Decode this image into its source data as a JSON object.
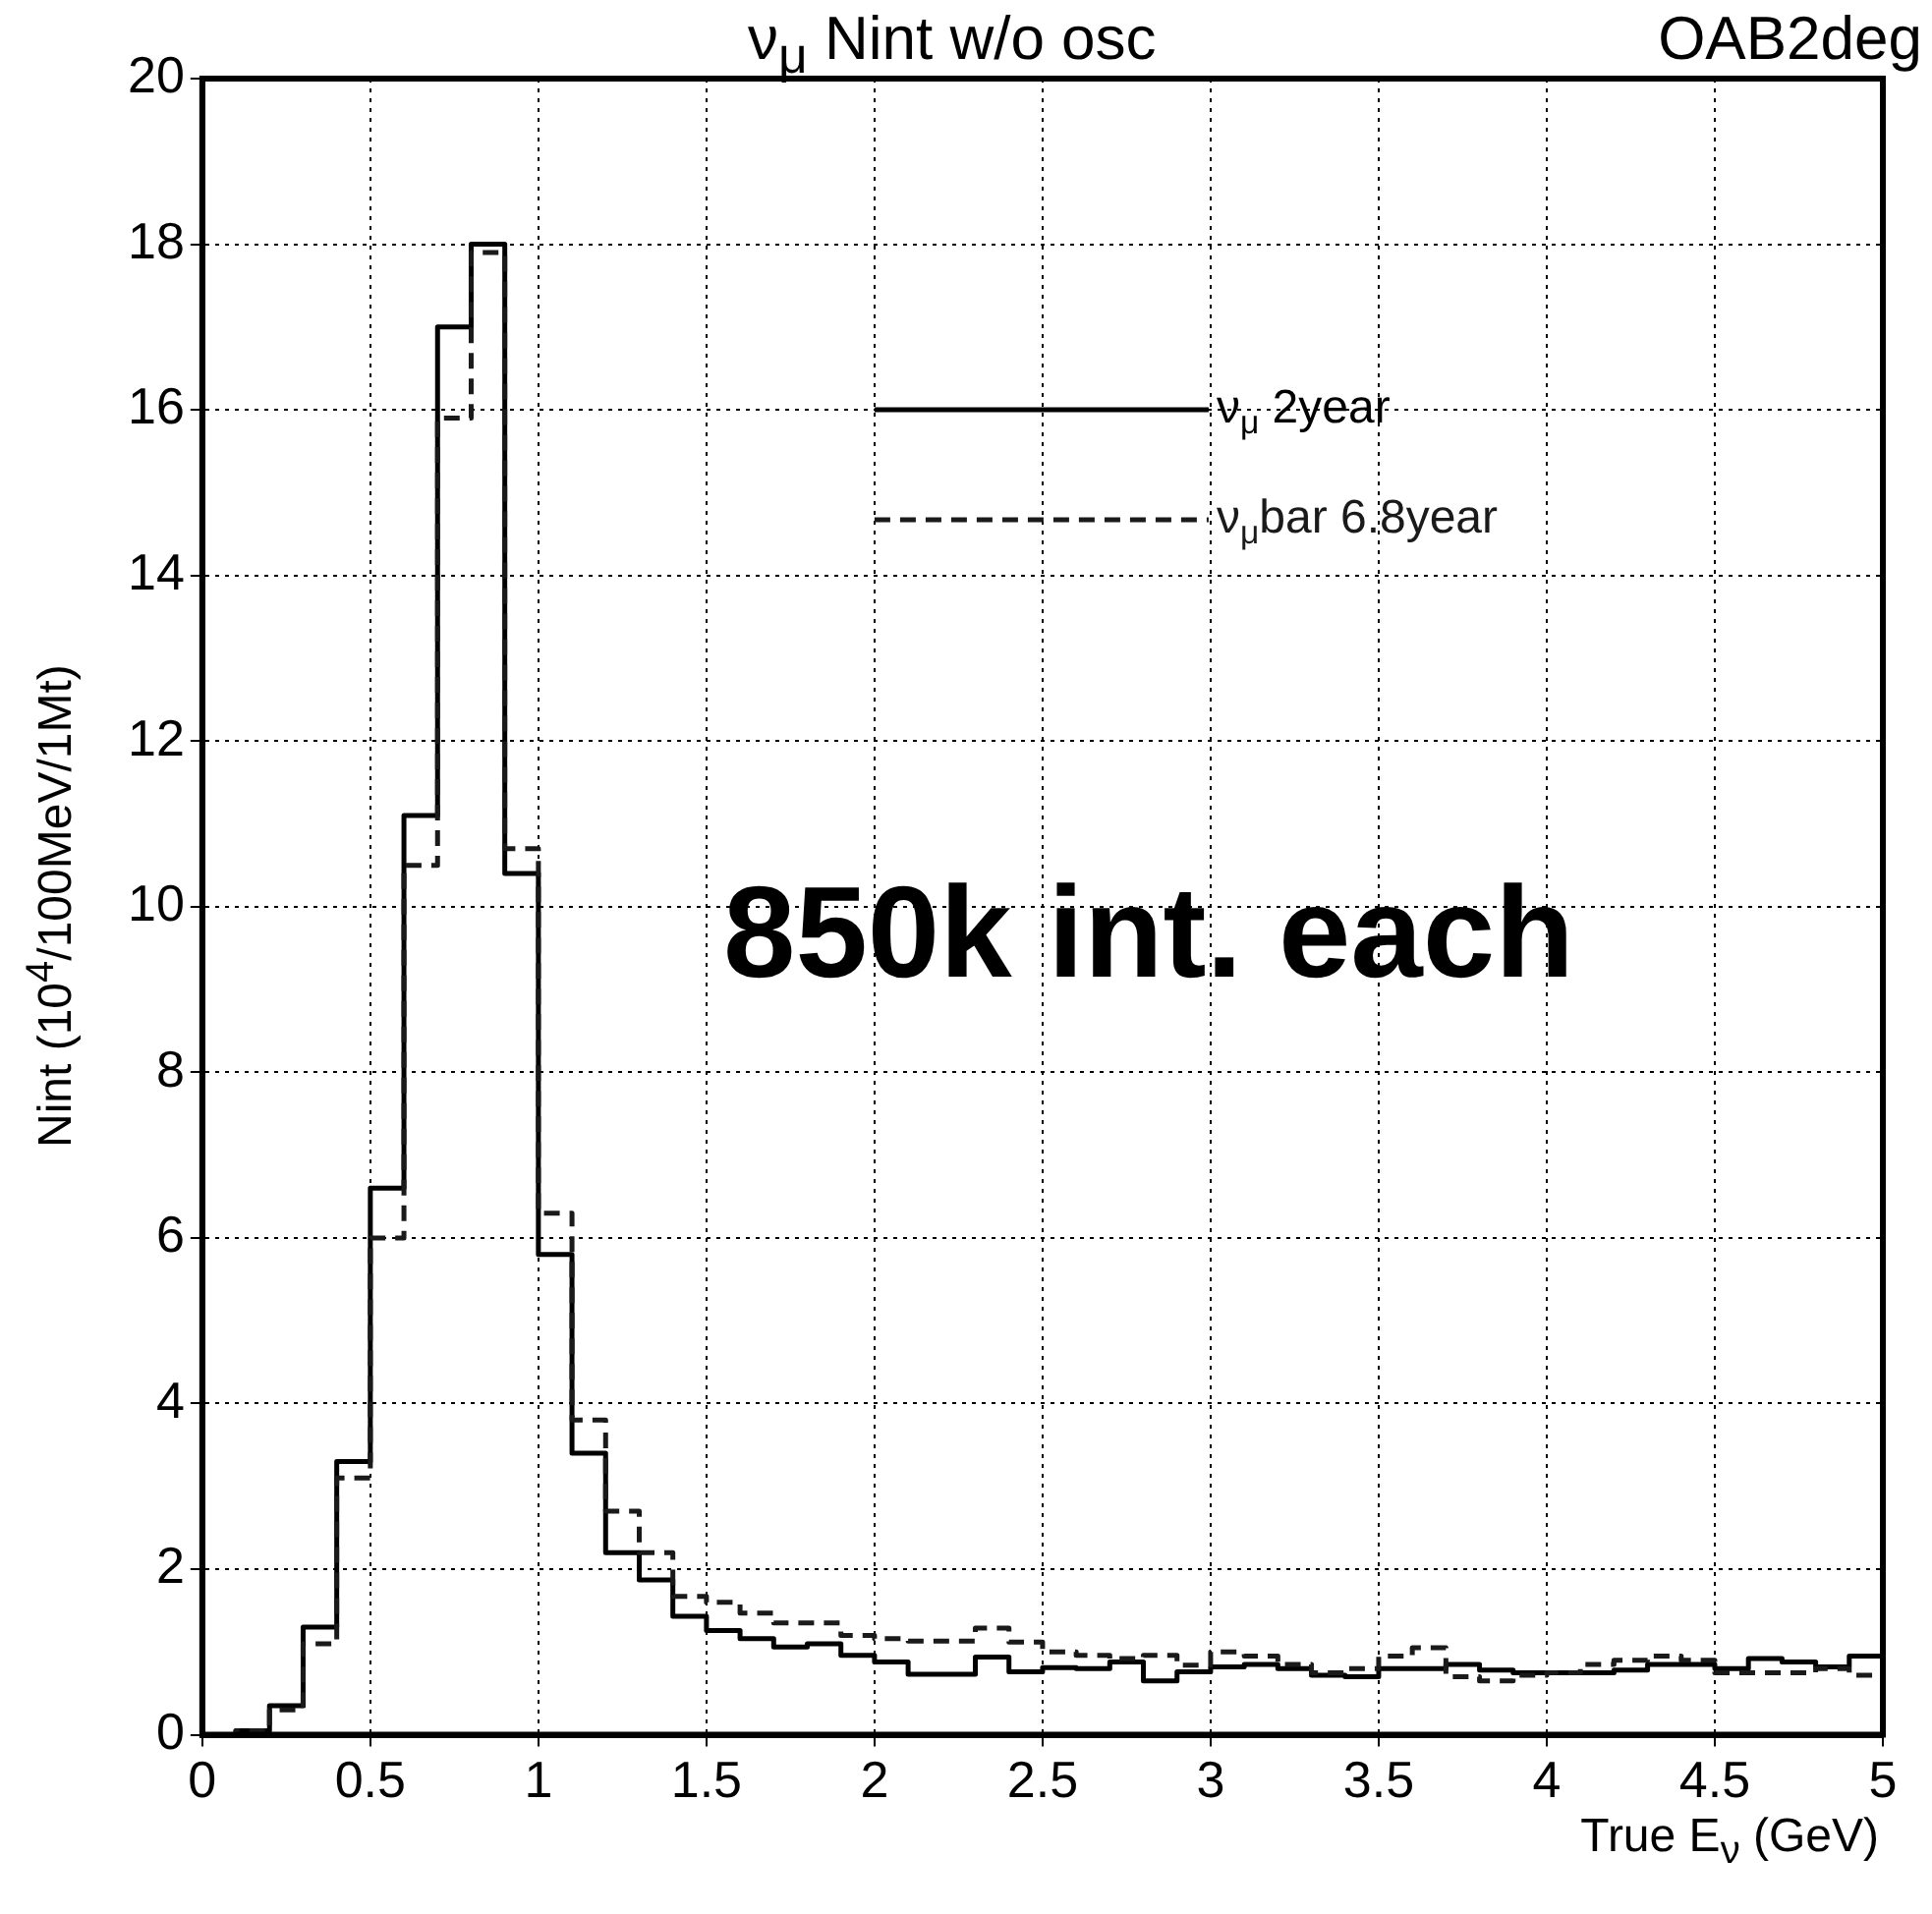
{
  "chart_data": {
    "type": "histogram",
    "title": "ν$_{μ}$ Nint w/o osc",
    "subtitle": "OAB2deg",
    "xlabel": "True E$_{ν}$ (GeV)",
    "ylabel": "Nint (10$^{4}$/100MeV/1Mt)",
    "annotations": [
      "850k int. each"
    ],
    "bins": [
      0,
      0.1,
      0.2,
      0.3,
      0.4,
      0.5,
      0.6,
      0.7,
      0.8,
      0.9,
      1.0,
      1.1,
      1.2,
      1.3,
      1.4,
      1.5,
      1.6,
      1.7,
      1.8,
      1.9,
      2.0,
      2.1,
      2.2,
      2.3,
      2.4,
      2.5,
      2.6,
      2.7,
      2.8,
      2.9,
      3.0,
      3.1,
      3.2,
      3.3,
      3.4,
      3.5,
      3.6,
      3.7,
      3.8,
      3.9,
      4.0,
      4.1,
      4.2,
      4.3,
      4.4,
      4.5,
      4.6,
      4.7,
      4.8,
      4.9,
      5.0
    ],
    "series": [
      {
        "name": "ν$_{μ}$ 2year",
        "color": "#000000",
        "line_style": "solid",
        "values": [
          0,
          0.05,
          0.35,
          1.3,
          3.3,
          6.6,
          11.1,
          17,
          18,
          10.4,
          5.8,
          3.4,
          2.2,
          1.87,
          1.43,
          1.26,
          1.16,
          1.06,
          1.1,
          0.96,
          0.88,
          0.73,
          0.73,
          0.94,
          0.76,
          0.81,
          0.8,
          0.88,
          0.65,
          0.76,
          0.82,
          0.85,
          0.8,
          0.72,
          0.7,
          0.8,
          0.8,
          0.85,
          0.78,
          0.75,
          0.75,
          0.75,
          0.78,
          0.85,
          0.85,
          0.8,
          0.92,
          0.88,
          0.82,
          0.95
        ]
      },
      {
        "name": "ν$_{μ}$bar 6.8year",
        "color": "#1a1a1a",
        "line_style": "dashed",
        "values": [
          0,
          0.05,
          0.3,
          1.1,
          3.1,
          6.0,
          10.5,
          15.9,
          17.9,
          10.7,
          6.3,
          3.8,
          2.7,
          2.2,
          1.67,
          1.6,
          1.47,
          1.35,
          1.35,
          1.2,
          1.16,
          1.13,
          1.13,
          1.29,
          1.12,
          1.0,
          0.96,
          0.92,
          0.96,
          0.84,
          1.0,
          0.95,
          0.85,
          0.75,
          0.8,
          0.95,
          1.05,
          0.7,
          0.65,
          0.72,
          0.75,
          0.85,
          0.9,
          0.95,
          0.9,
          0.75,
          0.75,
          0.75,
          0.8,
          0.72
        ]
      }
    ],
    "xlim": [
      0,
      5
    ],
    "ylim": [
      0,
      20
    ],
    "xticks": [
      0,
      0.5,
      1,
      1.5,
      2,
      2.5,
      3,
      3.5,
      4,
      4.5,
      5
    ],
    "yticks": [
      0,
      2,
      4,
      6,
      8,
      10,
      12,
      14,
      16,
      18,
      20
    ],
    "grid": true,
    "legend": "top right"
  }
}
